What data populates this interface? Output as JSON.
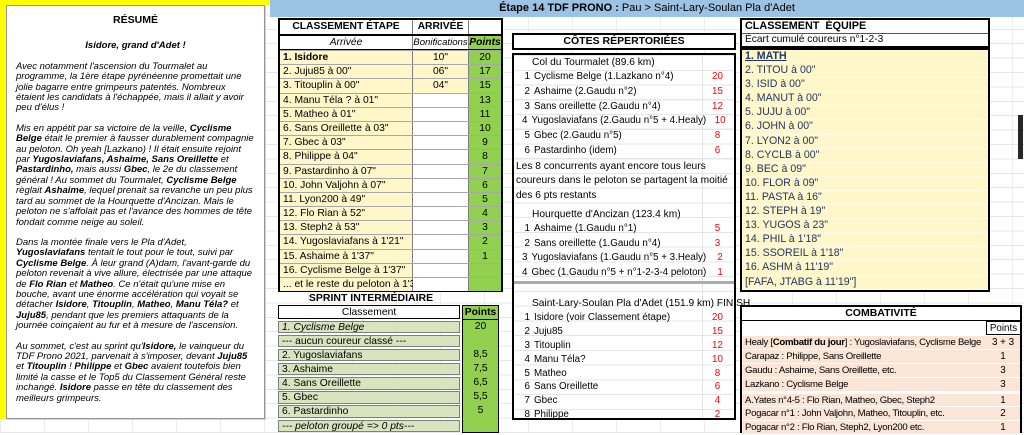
{
  "header": {
    "title_bold": "Étape 14 TDF PRONO :",
    "title_rest": " Pau > Saint-Lary-Soulan Pla d'Adet"
  },
  "colors": {
    "header_blue": "#9CC2E4",
    "points_green": "#92D050",
    "sprint_green": "#D7E4BD",
    "panel_yellow": "#FFF6C9",
    "combativite_salmon": "#FBE5D6",
    "highlight_yellow": "#FFFF00",
    "cotes_points_red": "#FF0000",
    "equipe_text_navy": "#1F3864"
  },
  "resume": {
    "title": "RÉSUMÉ",
    "subtitle": "Isidore, grand d'Adet !",
    "paragraphs": [
      "Avec notamment l'ascension du Tourmalet au programme, la 1ère étape pyrénéenne promettait une jolie bagarre entre grimpeurs patentés. Nombreux étaient les candidats à l'échappée, mais il allait y avoir peu d'élus !",
      "Mis en appétit par sa victoire de la veille, **Cyclisme Belge** était le premier à fausser durablement compagnie au peloton. Oh yeah [Lazkano) ! Il était ensuite rejoint par **Yugoslaviafans, Ashaime, Sans Oreillette** et **Pastardinho,** mais aussi **Gbec**, le 2e du classement général ! Au sommet du Tourmalet, **Cyclisme Belge** règlait **Ashaime**, lequel prenait sa revanche un peu plus tard au sommet de la Hourquette d'Ancizan. Mais le peloton ne s'affolait pas et l'avance des hommes de tête fondait comme neige au soleil.",
      "Dans la montée finale vers le Pla d'Adet, **Yugoslaviafans** tentait le tout pour le tout, suivi par **Cyclisme Belge**. À leur grand (A)dam, l'avant-garde du peloton revenait à vive allure, électrisée par une attaque de **Flo Rian** et **Matheo**. Ce n'était qu'une mise en bouche, avant une énorme accélération qui voyait se détacher **Isidore**, **Titouplin**, **Matheo**, **Manu Téla?** et **Juju85**, pendant que les premiers attaquants de la journée coinçaient au fur et à mesure de l'ascension.",
      "Au sommet, c'est au sprint qu'**Isidore,** le vainqueur du TDF Prono 2021, parvenait à s'imposer, devant **Juju85** et **Titouplin** ! **Philippe** et **Gbec** avaient toutefois bien limité la casse et le Top5 du Classement Général reste inchangé. **Isidore** passe en tête du classement des meilleurs grimpeurs."
    ]
  },
  "classement_etape": {
    "title": "CLASSEMENT ÉTAPE",
    "arrivee_header": "ARRIVÉE",
    "cols": {
      "arrivee": "Arrivée",
      "bonifications": "Bonifications",
      "points": "Points"
    },
    "rows": [
      {
        "name": "1. Isidore",
        "bonif": "10\"",
        "points": "20",
        "cls": "bold has-bonif"
      },
      {
        "name": "2. Juju85 à 00\"",
        "bonif": "06\"",
        "points": "17",
        "cls": "has-bonif"
      },
      {
        "name": "3. Titouplin à 00\"",
        "bonif": "04\"",
        "points": "15",
        "cls": "has-bonif"
      },
      {
        "name": "4. Manu Téla ? à 01\"",
        "bonif": "",
        "points": "13"
      },
      {
        "name": "5. Matheo à 01\"",
        "bonif": "",
        "points": "11"
      },
      {
        "name": "6. Sans Oreillette à 03\"",
        "bonif": "",
        "points": "10"
      },
      {
        "name": "7. Gbec à 03\"",
        "bonif": "",
        "points": "9"
      },
      {
        "name": "8. Philippe à 04\"",
        "bonif": "",
        "points": "8"
      },
      {
        "name": "9. Pastardinho à 07\"",
        "bonif": "",
        "points": "7"
      },
      {
        "name": "10. John Valjohn à 07\"",
        "bonif": "",
        "points": "6"
      },
      {
        "name": "11. Lyon200 à 49\"",
        "bonif": "",
        "points": "5"
      },
      {
        "name": "12. Flo Rian à 52\"",
        "bonif": "",
        "points": "4"
      },
      {
        "name": "13. Steph2 à 53\"",
        "bonif": "",
        "points": "3"
      },
      {
        "name": "14. Yugoslaviafans à 1'21\"",
        "bonif": "",
        "points": "2"
      },
      {
        "name": "15. Ashaime à 1'37\"",
        "bonif": "",
        "points": "1"
      },
      {
        "name": "16. Cyclisme Belge à 1'37\"",
        "bonif": "",
        "points": ""
      },
      {
        "name": "... et le reste du peloton à 1'37\"",
        "bonif": "",
        "points": ""
      }
    ]
  },
  "sprint": {
    "title": "SPRINT INTERMÉDIAIRE",
    "cols": {
      "classement": "Classement",
      "points": "Points"
    },
    "rows": [
      {
        "name": "1. Cyclisme Belge",
        "points": "20",
        "cls": "italic"
      },
      {
        "name": "--- aucun coureur classé ---",
        "points": ""
      },
      {
        "name": "2. Yugoslaviafans",
        "points": "8,5"
      },
      {
        "name": "3. Ashaime",
        "points": "7,5"
      },
      {
        "name": "4. Sans Oreillette",
        "points": "6,5"
      },
      {
        "name": "5. Gbec",
        "points": "5,5"
      },
      {
        "name": "6. Pastardinho",
        "points": "5"
      },
      {
        "name": "--- peloton groupé => 0 pts---",
        "points": "",
        "cls": "italic"
      }
    ]
  },
  "cotes": {
    "title": "CÔTES RÉPERTORIÉES",
    "tourmalet": {
      "header": "Col du Tourmalet (89.6 km)",
      "rows": [
        {
          "rank": "1",
          "name": "Cyclisme Belge (1.Lazkano n°4)",
          "points": "20"
        },
        {
          "rank": "2",
          "name": "Ashaime (2.Gaudu n°2)",
          "points": "15"
        },
        {
          "rank": "3",
          "name": "Sans oreillette (2.Gaudu n°4)",
          "points": "12"
        },
        {
          "rank": "4",
          "name": "Yugoslaviafans (2.Gaudu n°5 + 4.Healy)",
          "points": "10"
        },
        {
          "rank": "5",
          "name": "Gbec (2.Gaudu n°5)",
          "points": "8"
        },
        {
          "rank": "6",
          "name": "Pastardinho (idem)",
          "points": "6"
        }
      ]
    },
    "note": "Les 8 concurrents ayant encore tous leurs coureurs dans le peloton se partagent la moitié des 6 pts restants",
    "hourquette": {
      "header": "Hourquette d'Ancizan (123.4 km)",
      "rows": [
        {
          "rank": "1",
          "name": "Ashaime (1.Gaudu n°1)",
          "points": "5"
        },
        {
          "rank": "2",
          "name": "Sans oreillette (1.Gaudu n°4)",
          "points": "3"
        },
        {
          "rank": "3",
          "name": "Yugoslaviafans (1.Gaudu n°5 + 3.Healy)",
          "points": "2"
        },
        {
          "rank": "4",
          "name": "Gbec (1.Gaudu n°5 + n°1-2-3-4 peloton)",
          "points": "1"
        }
      ]
    },
    "pla_adet": {
      "header": "Saint-Lary-Soulan Pla d'Adet (151.9 km) FINISH",
      "rows": [
        {
          "rank": "1",
          "name": "Isidore (voir Classement étape)",
          "points": "20"
        },
        {
          "rank": "2",
          "name": "Juju85",
          "points": "15"
        },
        {
          "rank": "3",
          "name": "Titouplin",
          "points": "12"
        },
        {
          "rank": "4",
          "name": "Manu Téla?",
          "points": "10"
        },
        {
          "rank": "5",
          "name": "Matheo",
          "points": "8"
        },
        {
          "rank": "6",
          "name": "Sans Oreillette",
          "points": "6"
        },
        {
          "rank": "7",
          "name": "Gbec",
          "points": "4"
        },
        {
          "rank": "8",
          "name": "Philippe",
          "points": "2"
        }
      ]
    }
  },
  "equipe": {
    "title": "CLASSEMENT  ÉQUIPE",
    "subtitle": "Écart cumulé coureurs n°1-2-3",
    "rows": [
      {
        "label": "1. MATH",
        "cls": "first"
      },
      {
        "label": "2. TITOU à 00\""
      },
      {
        "label": "3. ISID à 00\""
      },
      {
        "label": "4. MANUT à 00\""
      },
      {
        "label": "5. JUJU à 00\""
      },
      {
        "label": "6. JOHN à 00\""
      },
      {
        "label": "7. LYON2 à 00\""
      },
      {
        "label": "8. CYCLB à 00\""
      },
      {
        "label": "9. BEC à 09\""
      },
      {
        "label": "10. FLOR à 09\""
      },
      {
        "label": "11. PASTA à 16\""
      },
      {
        "label": "12. STEPH à 19\""
      },
      {
        "label": "13. YUGOS à 23\""
      },
      {
        "label": "14. PHIL à 1'18\""
      },
      {
        "label": "15. SSOREIL à 1'18\""
      },
      {
        "label": "16. ASHM à 11'19\""
      },
      {
        "label": "[FAFA, JTABG à 11'19\"]"
      }
    ]
  },
  "combativite": {
    "title": "COMBATIVITÉ",
    "points_label": "Points",
    "rows": [
      {
        "label": "Healy [**Combatif du jour**] : Yugoslaviafans, Cyclisme Belge",
        "points": "3 + 3"
      },
      {
        "label": "Carapaz : Philippe, Sans Oreillette",
        "points": "1"
      },
      {
        "label": "Gaudu : Ashaime, Sans Oreillette, etc.",
        "points": "3"
      },
      {
        "label": "Lazkano : Cyclisme Belge",
        "points": "3"
      },
      {
        "label": "A.Yates n°4-5 : Flo Rian, Matheo, Gbec, Steph2",
        "points": "1",
        "cls": "gap-top"
      },
      {
        "label": "Pogacar n°1 : John Valjohn, Matheo, Titouplin, etc.",
        "points": "2"
      },
      {
        "label": "Pogacar n°2 : Flo Rian, Steph2, Lyon200 etc.",
        "points": "1"
      }
    ]
  }
}
